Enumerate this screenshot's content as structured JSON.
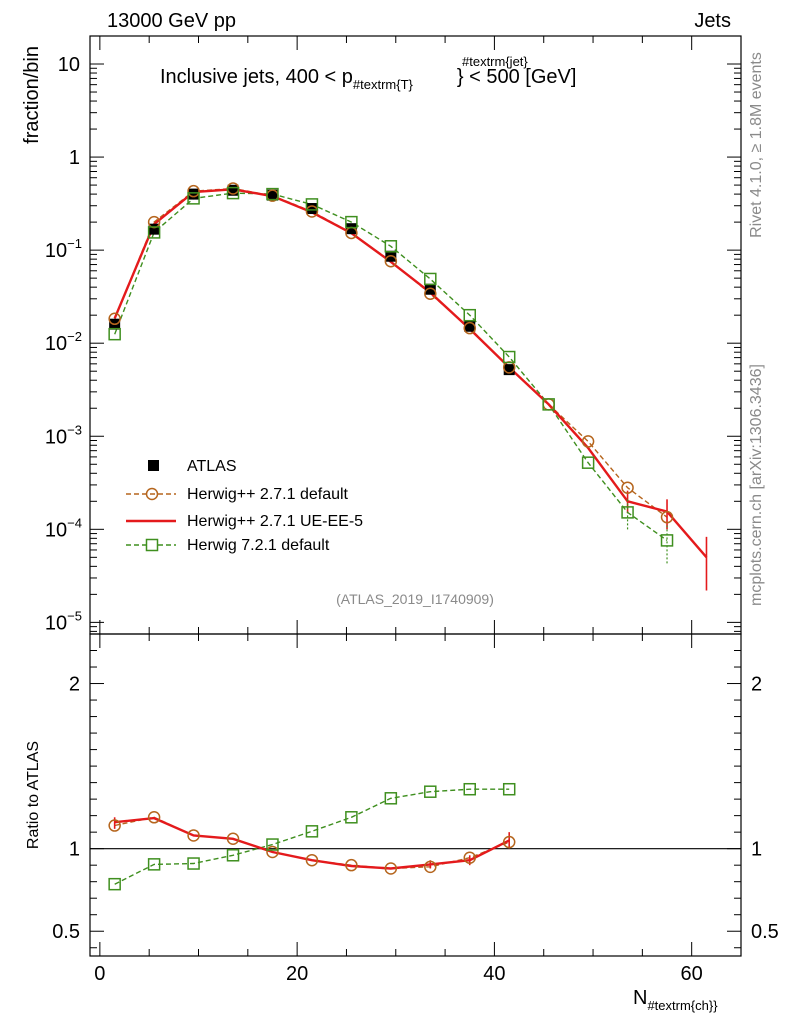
{
  "header": {
    "left": "13000 GeV pp",
    "right": "Jets"
  },
  "side_labels": {
    "rivet": "Rivet 4.1.0, ≥ 1.8M events",
    "mcplots": "mcplots.cern.ch [arXiv:1306.3436]"
  },
  "chart_data": [
    {
      "type": "line",
      "panel": "main",
      "title_parts": {
        "pre": "Inclusive jets, 400 < p",
        "sub": "#textrm{T}",
        "sup": "#textrm{jet}",
        "post": "} < 500 [GeV]"
      },
      "ylabel": "fraction/bin",
      "yscale": "log",
      "ylim": [
        7.5e-06,
        20
      ],
      "xlim": [
        -1,
        65
      ],
      "yticks": [
        {
          "v": 10,
          "m": "10",
          "e": ""
        },
        {
          "v": 1,
          "m": "1",
          "e": ""
        },
        {
          "v": 0.1,
          "m": "10",
          "e": "−1"
        },
        {
          "v": 0.01,
          "m": "10",
          "e": "−2"
        },
        {
          "v": 0.001,
          "m": "10",
          "e": "−3"
        },
        {
          "v": 0.0001,
          "m": "10",
          "e": "−4"
        },
        {
          "v": 1e-05,
          "m": "10",
          "e": "−5"
        }
      ],
      "watermark": "(ATLAS_2019_I1740909)",
      "series": [
        {
          "name": "ATLAS",
          "style": "marker-square",
          "color": "#000000",
          "x": [
            1.5,
            5.5,
            9.5,
            13.5,
            17.5,
            21.5,
            25.5,
            29.5,
            33.5,
            37.5,
            41.5
          ],
          "y": [
            0.016,
            0.168,
            0.4,
            0.44,
            0.39,
            0.28,
            0.17,
            0.086,
            0.038,
            0.0152,
            0.0052
          ]
        },
        {
          "name": "Herwig++ 2.7.1 default",
          "style": "dashed-circle",
          "color": "#b5651d",
          "x": [
            1.5,
            5.5,
            9.5,
            13.5,
            17.5,
            21.5,
            25.5,
            29.5,
            33.5,
            37.5,
            41.5,
            45.5,
            49.5,
            53.5,
            57.5
          ],
          "y": [
            0.0183,
            0.2,
            0.43,
            0.46,
            0.385,
            0.26,
            0.153,
            0.076,
            0.034,
            0.0145,
            0.0055,
            0.0022,
            0.00088,
            0.00028,
            0.000135
          ]
        },
        {
          "name": "Herwig++ 2.7.1 UE-EE-5",
          "style": "solid",
          "color": "#e41a1c",
          "x": [
            1.5,
            5.5,
            9.5,
            13.5,
            17.5,
            21.5,
            25.5,
            29.5,
            33.5,
            37.5,
            41.5,
            45.5,
            49.5,
            53.5,
            57.5,
            61.5
          ],
          "y": [
            0.0185,
            0.19,
            0.42,
            0.45,
            0.38,
            0.255,
            0.152,
            0.075,
            0.035,
            0.0142,
            0.0055,
            0.0022,
            0.00075,
            0.0002,
            0.000155,
            5e-05
          ]
        },
        {
          "name": "Herwig 7.2.1 default",
          "style": "dashed-square",
          "color": "#3f8f1f",
          "x": [
            1.5,
            5.5,
            9.5,
            13.5,
            17.5,
            21.5,
            25.5,
            29.5,
            33.5,
            37.5,
            41.5,
            45.5,
            49.5,
            53.5,
            57.5
          ],
          "y": [
            0.0125,
            0.155,
            0.36,
            0.41,
            0.4,
            0.31,
            0.2,
            0.11,
            0.049,
            0.02,
            0.0071,
            0.0022,
            0.00052,
            0.000152,
            7.6e-05
          ]
        }
      ]
    },
    {
      "type": "line",
      "panel": "ratio",
      "ylabel": "Ratio to ATLAS",
      "xlabel_parts": {
        "main": "N",
        "sub": "#textrm{ch}}"
      },
      "ylim": [
        0.35,
        2.3
      ],
      "xlim": [
        -1,
        65
      ],
      "yticks": [
        "0.5",
        "1",
        "2"
      ],
      "xticks": [
        "0",
        "20",
        "40",
        "60"
      ],
      "series": [
        {
          "name": "Herwig++ 2.7.1 default",
          "x": [
            1.5,
            5.5,
            9.5,
            13.5,
            17.5,
            21.5,
            25.5,
            29.5,
            33.5,
            37.5,
            41.5
          ],
          "y": [
            1.14,
            1.19,
            1.08,
            1.06,
            0.98,
            0.93,
            0.9,
            0.88,
            0.89,
            0.945,
            1.04
          ]
        },
        {
          "name": "Herwig++ 2.7.1 UE-EE-5",
          "x": [
            1.5,
            5.5,
            9.5,
            13.5,
            17.5,
            21.5,
            25.5,
            29.5,
            33.5,
            37.5,
            41.5
          ],
          "y": [
            1.16,
            1.185,
            1.08,
            1.06,
            0.98,
            0.93,
            0.895,
            0.88,
            0.905,
            0.93,
            1.05
          ]
        },
        {
          "name": "Herwig 7.2.1 default",
          "x": [
            1.5,
            5.5,
            9.5,
            13.5,
            17.5,
            21.5,
            25.5,
            29.5,
            33.5,
            37.5,
            41.5
          ],
          "y": [
            0.785,
            0.905,
            0.91,
            0.96,
            1.025,
            1.105,
            1.19,
            1.305,
            1.345,
            1.36,
            1.36
          ]
        }
      ]
    }
  ]
}
